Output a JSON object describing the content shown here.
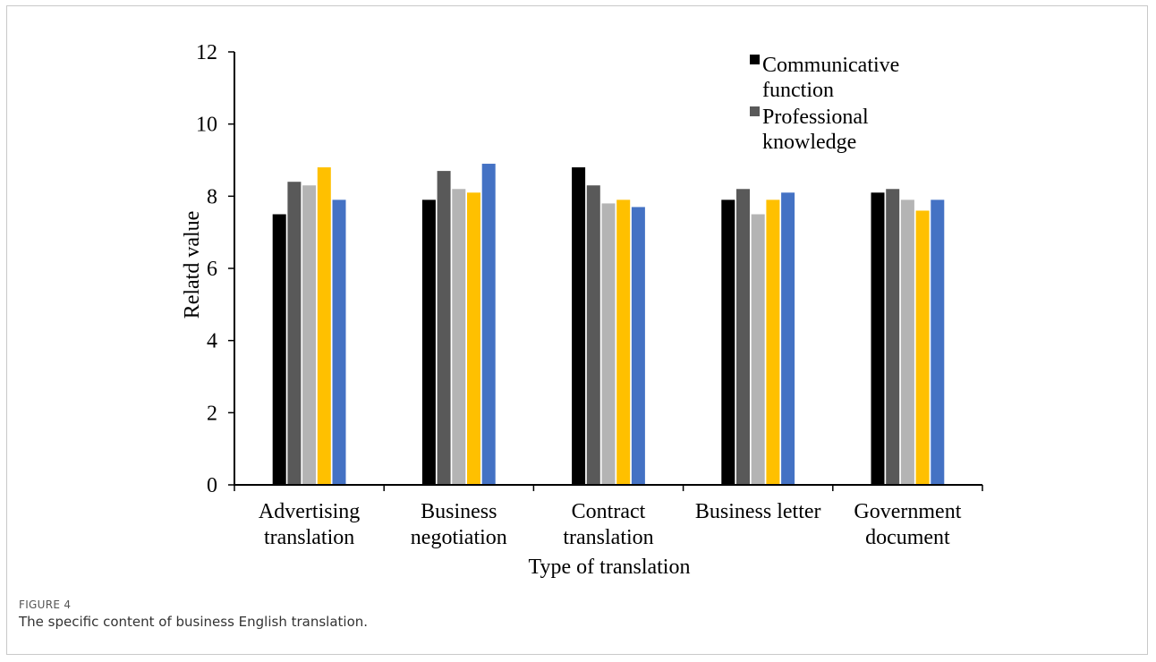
{
  "figure": {
    "label": "FIGURE 4",
    "caption": "The specific content of business English translation."
  },
  "chart_data": {
    "type": "bar",
    "title": "",
    "xlabel": "Type of translation",
    "ylabel": "Relatd value",
    "ylim": [
      0,
      12
    ],
    "yticks": [
      0,
      2,
      4,
      6,
      8,
      10,
      12
    ],
    "grid": false,
    "legend_position": "top-right",
    "categories": [
      [
        "Advertising",
        "translation"
      ],
      [
        "Business",
        "negotiation"
      ],
      [
        "Contract",
        "translation"
      ],
      [
        "Business letter"
      ],
      [
        "Government",
        "document"
      ]
    ],
    "series": [
      {
        "name": [
          "Communicative",
          "function"
        ],
        "color": "#000000",
        "values": [
          7.5,
          7.9,
          8.8,
          7.9,
          8.1
        ]
      },
      {
        "name": [
          "Professional",
          "knowledge"
        ],
        "color": "#595959",
        "values": [
          8.4,
          8.7,
          8.3,
          8.2,
          8.2
        ]
      },
      {
        "color": "#b4b4b4",
        "values": [
          8.3,
          8.2,
          7.8,
          7.5,
          7.9
        ]
      },
      {
        "color": "#ffc000",
        "values": [
          8.8,
          8.1,
          7.9,
          7.9,
          7.6
        ]
      },
      {
        "color": "#4472c4",
        "values": [
          7.9,
          8.9,
          7.7,
          8.1,
          7.9
        ]
      }
    ]
  }
}
